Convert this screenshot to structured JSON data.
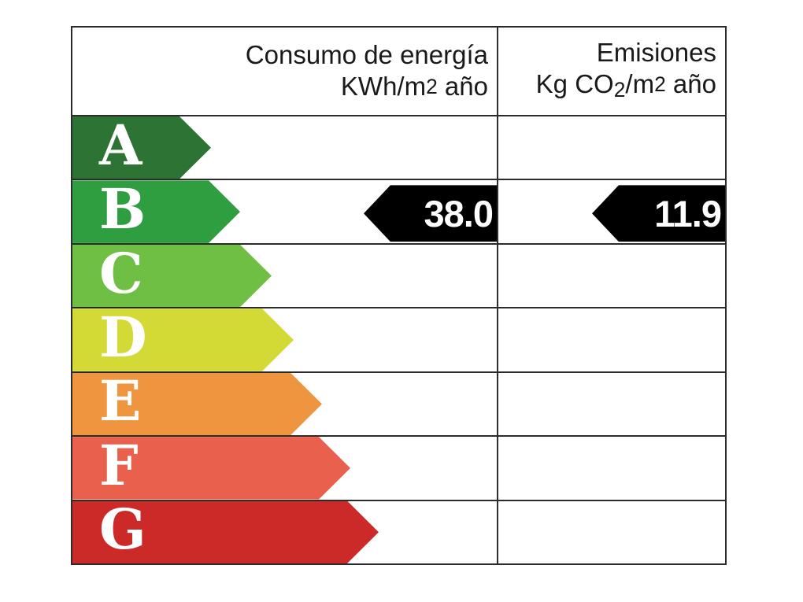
{
  "page": {
    "background": "#ffffff",
    "border_color": "#2b2b2b",
    "value_arrow_color": "#000000",
    "value_text_color": "#ffffff"
  },
  "header": {
    "consumption": {
      "line1": "Consumo de energía",
      "line2_a": "KWh/m",
      "line2_exp": "2",
      "line2_b": " año"
    },
    "emissions": {
      "line1": "Emisiones",
      "line2_a": "Kg CO",
      "line2_sub": "2",
      "line2_b": "/m",
      "line2_exp": "2",
      "line2_c": " año"
    }
  },
  "ratings": [
    {
      "letter": "A",
      "color": "#2d7434",
      "arrow_width": 176
    },
    {
      "letter": "B",
      "color": "#2f9e41",
      "arrow_width": 213
    },
    {
      "letter": "C",
      "color": "#6fbf44",
      "arrow_width": 253
    },
    {
      "letter": "D",
      "color": "#d3d935",
      "arrow_width": 281
    },
    {
      "letter": "E",
      "color": "#f0953f",
      "arrow_width": 317
    },
    {
      "letter": "F",
      "color": "#e9614c",
      "arrow_width": 353
    },
    {
      "letter": "G",
      "color": "#cb2a28",
      "arrow_width": 389
    }
  ],
  "values": {
    "rating": "B",
    "consumption": "38.0",
    "emissions": "11.9"
  },
  "chart_data": {
    "type": "bar",
    "title": "",
    "categories": [
      "A",
      "B",
      "C",
      "D",
      "E",
      "F",
      "G"
    ],
    "bar_colors": [
      "#2d7434",
      "#2f9e41",
      "#6fbf44",
      "#d3d935",
      "#f0953f",
      "#e9614c",
      "#cb2a28"
    ],
    "rating": "B",
    "series": [
      {
        "name": "Consumo de energía KWh/m2 año",
        "values": [
          null,
          38.0,
          null,
          null,
          null,
          null,
          null
        ]
      },
      {
        "name": "Emisiones Kg CO2/m2 año",
        "values": [
          null,
          11.9,
          null,
          null,
          null,
          null,
          null
        ]
      }
    ],
    "legend_position": "none",
    "grid": false
  }
}
